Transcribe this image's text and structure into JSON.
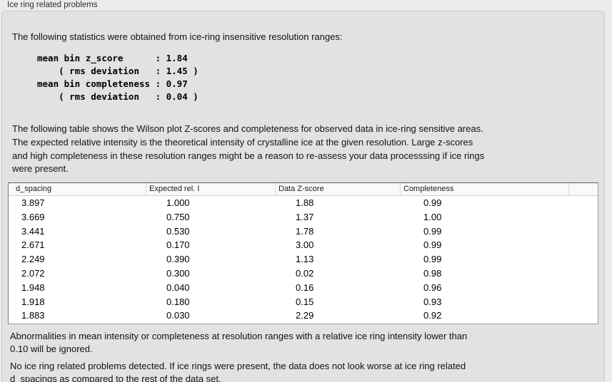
{
  "panel": {
    "title": "Ice ring related problems"
  },
  "intro_text": "The following statistics were obtained from ice-ring insensitive resolution ranges:",
  "stats_block": {
    "lines": [
      "mean bin z_score      : 1.84",
      "    ( rms deviation   : 1.45 )",
      "mean bin completeness : 0.97",
      "    ( rms deviation   : 0.04 )"
    ],
    "values": {
      "mean_bin_z_score": "1.84",
      "z_score_rms_deviation": "1.45",
      "mean_bin_completeness": "0.97",
      "completeness_rms_deviation": "0.04"
    }
  },
  "description_lines": [
    "The following table shows the Wilson plot Z-scores and completeness for observed data in ice-ring sensitive areas.",
    "The expected relative intensity is the theoretical intensity of crystalline ice at the given resolution. Large z-scores",
    "and high completeness in these resolution ranges might be a reason to re-assess your data processsing if ice rings",
    "were present."
  ],
  "table": {
    "columns": [
      "d_spacing",
      "Expected rel. I",
      "Data Z-score",
      "Completeness"
    ],
    "column_keys": [
      "d-spacing",
      "expected-rel-i",
      "data-z-score",
      "completeness"
    ],
    "rows": [
      [
        "3.897",
        "1.000",
        "1.88",
        "0.99"
      ],
      [
        "3.669",
        "0.750",
        "1.37",
        "1.00"
      ],
      [
        "3.441",
        "0.530",
        "1.78",
        "0.99"
      ],
      [
        "2.671",
        "0.170",
        "3.00",
        "0.99"
      ],
      [
        "2.249",
        "0.390",
        "1.13",
        "0.99"
      ],
      [
        "2.072",
        "0.300",
        "0.02",
        "0.98"
      ],
      [
        "1.948",
        "0.040",
        "0.16",
        "0.96"
      ],
      [
        "1.918",
        "0.180",
        "0.15",
        "0.93"
      ],
      [
        "1.883",
        "0.030",
        "2.29",
        "0.92"
      ]
    ]
  },
  "footnote_lines": [
    "Abnormalities in mean intensity or completeness at resolution ranges with a relative ice ring intensity lower than",
    "0.10 will be ignored."
  ],
  "conclusion_lines": [
    "No ice ring related problems detected. If ice rings were present, the data does not look worse at ice ring related",
    "d_spacings as compared to the rest of the data set."
  ],
  "colors": {
    "page_background": "#ececec",
    "panel_background": "#e2e2e2",
    "panel_border": "#c7c7c7",
    "table_background": "#ffffff",
    "table_border": "#9a9a9a",
    "table_header_background": "#f9f9f9",
    "text": "#121212"
  }
}
